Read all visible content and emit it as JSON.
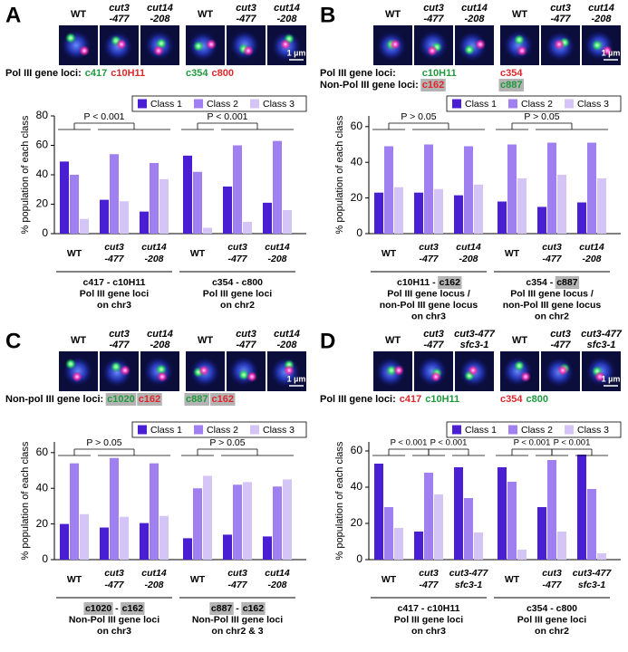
{
  "chart_data": [
    {
      "type": "bar",
      "label": "A",
      "y_label": "% population of each class",
      "loci_title": [
        "Pol III gene loci:"
      ],
      "strips": [
        {
          "loci": [
            [
              {
                "text": "c417",
                "color": "#1f9a3c"
              },
              {
                "text": "c10H11",
                "color": "#e0262a"
              }
            ]
          ]
        },
        {
          "loci": [
            [
              {
                "text": "c354",
                "color": "#1f9a3c"
              },
              {
                "text": "c800",
                "color": "#e0262a"
              }
            ]
          ]
        }
      ],
      "scale_bar": "1 µm",
      "categories": [
        [
          "WT"
        ],
        [
          "cut3",
          "-477"
        ],
        [
          "cut14",
          "-208"
        ],
        [
          "WT"
        ],
        [
          "cut3",
          "-477"
        ],
        [
          "cut14",
          "-208"
        ]
      ],
      "groups": [
        {
          "label": [
            [
              {
                "text": "c417 - c10H11"
              }
            ],
            [
              {
                "text": "Pol III gene loci"
              }
            ],
            [
              {
                "text": "on chr3"
              }
            ]
          ],
          "p_values": [
            "P < 0.001"
          ]
        },
        {
          "label": [
            [
              {
                "text": "c354 - c800"
              }
            ],
            [
              {
                "text": "Pol III gene loci"
              }
            ],
            [
              {
                "text": "on chr2"
              }
            ]
          ],
          "p_values": [
            "P < 0.001"
          ]
        }
      ],
      "series": [
        {
          "name": "Class 1",
          "color": "#4a1fd4",
          "values": [
            49,
            23,
            15,
            53,
            32,
            21
          ]
        },
        {
          "name": "Class 2",
          "color": "#a07ff0",
          "values": [
            40,
            54,
            48,
            42,
            60,
            63
          ]
        },
        {
          "name": "Class 3",
          "color": "#d5c5f7",
          "values": [
            10,
            22,
            37,
            4,
            8,
            16
          ]
        }
      ],
      "ylim": [
        0,
        80
      ],
      "yticks": [
        0,
        20,
        40,
        60,
        80
      ],
      "legend": "upper right"
    },
    {
      "type": "bar",
      "label": "B",
      "y_label": "% population of each class",
      "loci_title": [
        "Pol III gene loci:",
        "Non-Pol III gene loci:"
      ],
      "strips": [
        {
          "loci": [
            [
              {
                "text": "c10H11",
                "color": "#1f9a3c"
              }
            ],
            [
              {
                "text": "c162",
                "color": "#e0262a",
                "box": true
              }
            ]
          ]
        },
        {
          "loci": [
            [
              {
                "text": "c354",
                "color": "#e0262a"
              }
            ],
            [
              {
                "text": "c887",
                "color": "#1f9a3c",
                "box": true
              }
            ]
          ]
        }
      ],
      "scale_bar": "1 µm",
      "categories": [
        [
          "WT"
        ],
        [
          "cut3",
          "-477"
        ],
        [
          "cut14",
          "-208"
        ],
        [
          "WT"
        ],
        [
          "cut3",
          "-477"
        ],
        [
          "cut14",
          "-208"
        ]
      ],
      "groups": [
        {
          "label": [
            [
              {
                "text": "c10H11 -"
              },
              {
                "text": "c162",
                "box": true
              }
            ],
            [
              {
                "text": "Pol III gene locus /"
              }
            ],
            [
              {
                "text": "non-Pol III gene locus"
              }
            ],
            [
              {
                "text": "on chr3"
              }
            ]
          ],
          "p_values": [
            "P > 0.05"
          ]
        },
        {
          "label": [
            [
              {
                "text": "c354 -"
              },
              {
                "text": "c887",
                "box": true
              }
            ],
            [
              {
                "text": "Pol III gene locus /"
              }
            ],
            [
              {
                "text": "non-Pol III gene locus"
              }
            ],
            [
              {
                "text": "on chr2"
              }
            ]
          ],
          "p_values": [
            "P > 0.05"
          ]
        }
      ],
      "series": [
        {
          "name": "Class 1",
          "color": "#4a1fd4",
          "values": [
            23,
            23,
            21.5,
            18,
            15,
            17.5
          ]
        },
        {
          "name": "Class 2",
          "color": "#a07ff0",
          "values": [
            49,
            50,
            49,
            50,
            51,
            51
          ]
        },
        {
          "name": "Class 3",
          "color": "#d5c5f7",
          "values": [
            26,
            25,
            27.5,
            31,
            33,
            31
          ]
        }
      ],
      "ylim": [
        0,
        66
      ],
      "yticks": [
        0,
        20,
        40,
        60
      ],
      "legend": "upper right"
    },
    {
      "type": "bar",
      "label": "C",
      "y_label": "% population of each class",
      "loci_title": [
        "Non-pol III gene loci:"
      ],
      "strips": [
        {
          "loci": [
            [
              {
                "text": "c1020",
                "color": "#1f9a3c",
                "box": true
              },
              {
                "text": "c162",
                "color": "#e0262a",
                "box": true
              }
            ]
          ]
        },
        {
          "loci": [
            [
              {
                "text": "c887",
                "color": "#1f9a3c",
                "box": true
              },
              {
                "text": "c162",
                "color": "#e0262a",
                "box": true
              }
            ]
          ]
        }
      ],
      "scale_bar": "1 µm",
      "categories": [
        [
          "WT"
        ],
        [
          "cut3",
          "-477"
        ],
        [
          "cut14",
          "-208"
        ],
        [
          "WT"
        ],
        [
          "cut3",
          "-477"
        ],
        [
          "cut14",
          "-208"
        ]
      ],
      "groups": [
        {
          "label": [
            [
              {
                "text": "c1020",
                "box": true
              },
              {
                "text": "-"
              },
              {
                "text": "c162",
                "box": true
              }
            ],
            [
              {
                "text": "Non-Pol III gene loci"
              }
            ],
            [
              {
                "text": "on chr3"
              }
            ]
          ],
          "p_values": [
            "P > 0.05"
          ]
        },
        {
          "label": [
            [
              {
                "text": "c887",
                "box": true
              },
              {
                "text": "-"
              },
              {
                "text": "c162",
                "box": true
              }
            ],
            [
              {
                "text": "Non-Pol III gene loci"
              }
            ],
            [
              {
                "text": "on chr2 & 3"
              }
            ]
          ],
          "p_values": [
            "P > 0.05"
          ]
        }
      ],
      "series": [
        {
          "name": "Class 1",
          "color": "#4a1fd4",
          "values": [
            20,
            18,
            20.5,
            12,
            14,
            13
          ]
        },
        {
          "name": "Class 2",
          "color": "#a07ff0",
          "values": [
            54,
            57,
            54,
            40,
            42,
            41
          ]
        },
        {
          "name": "Class 3",
          "color": "#d5c5f7",
          "values": [
            25.5,
            24,
            24.5,
            47,
            43.5,
            45
          ]
        }
      ],
      "ylim": [
        0,
        66
      ],
      "yticks": [
        0,
        20,
        40,
        60
      ],
      "legend": "upper right"
    },
    {
      "type": "bar",
      "label": "D",
      "y_label": "% population of each class",
      "loci_title": [
        "Pol III gene loci:"
      ],
      "strips": [
        {
          "loci": [
            [
              {
                "text": "c417",
                "color": "#e0262a"
              },
              {
                "text": "c10H11",
                "color": "#1f9a3c"
              }
            ]
          ]
        },
        {
          "loci": [
            [
              {
                "text": "c354",
                "color": "#e0262a"
              },
              {
                "text": "c800",
                "color": "#1f9a3c"
              }
            ]
          ]
        }
      ],
      "scale_bar": "1 µm",
      "categories": [
        [
          "WT"
        ],
        [
          "cut3",
          "-477"
        ],
        [
          "cut3-477",
          "sfc3-1"
        ],
        [
          "WT"
        ],
        [
          "cut3",
          "-477"
        ],
        [
          "cut3-477",
          "sfc3-1"
        ]
      ],
      "groups": [
        {
          "label": [
            [
              {
                "text": "c417 - c10H11"
              }
            ],
            [
              {
                "text": "Pol III gene loci"
              }
            ],
            [
              {
                "text": "on chr3"
              }
            ]
          ],
          "p_values": [
            "P < 0.001",
            "P < 0.001"
          ]
        },
        {
          "label": [
            [
              {
                "text": "c354 - c800"
              }
            ],
            [
              {
                "text": "Pol III gene loci"
              }
            ],
            [
              {
                "text": "on chr2"
              }
            ]
          ],
          "p_values": [
            "P < 0.001",
            "P < 0.001"
          ]
        }
      ],
      "series": [
        {
          "name": "Class 1",
          "color": "#4a1fd4",
          "values": [
            53,
            15.5,
            51,
            51,
            29,
            58
          ]
        },
        {
          "name": "Class 2",
          "color": "#a07ff0",
          "values": [
            29,
            48,
            34,
            43,
            55,
            39
          ]
        },
        {
          "name": "Class 3",
          "color": "#d5c5f7",
          "values": [
            17.5,
            36,
            15,
            5.5,
            15.5,
            3.5
          ]
        }
      ],
      "ylim": [
        0,
        65
      ],
      "yticks": [
        0,
        20,
        40,
        60
      ],
      "legend": "upper right"
    }
  ]
}
